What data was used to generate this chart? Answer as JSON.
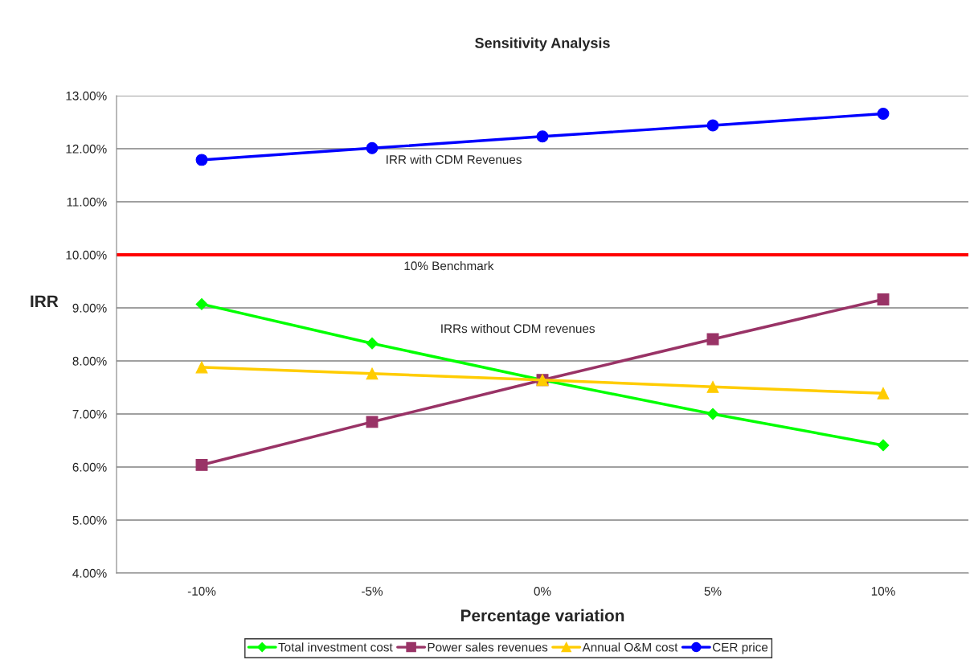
{
  "chart_data": {
    "type": "line",
    "title": "Sensitivity Analysis",
    "xlabel": "Percentage variation",
    "ylabel": "IRR",
    "categories": [
      "-10%",
      "-5%",
      "0%",
      "5%",
      "10%"
    ],
    "series": [
      {
        "name": "Total investment cost",
        "color": "#00ff00",
        "marker": "diamond",
        "values": [
          9.07,
          8.33,
          7.64,
          7.0,
          6.41
        ]
      },
      {
        "name": "Power sales revenues",
        "color": "#993366",
        "marker": "square",
        "values": [
          6.04,
          6.85,
          7.64,
          8.41,
          9.16
        ]
      },
      {
        "name": "Annual O&M cost",
        "color": "#ffcc00",
        "marker": "triangle",
        "values": [
          7.88,
          7.76,
          7.64,
          7.51,
          7.39
        ]
      },
      {
        "name": "CER price",
        "color": "#0000ff",
        "marker": "circle",
        "values": [
          11.79,
          12.01,
          12.23,
          12.44,
          12.66
        ]
      }
    ],
    "ylim": [
      4,
      13
    ],
    "yticks": [
      {
        "value": 4,
        "label": "4.00%"
      },
      {
        "value": 5,
        "label": "5.00%"
      },
      {
        "value": 6,
        "label": "6.00%"
      },
      {
        "value": 7,
        "label": "7.00%"
      },
      {
        "value": 8,
        "label": "8.00%"
      },
      {
        "value": 9,
        "label": "9.00%"
      },
      {
        "value": 10,
        "label": "10.00%"
      },
      {
        "value": 11,
        "label": "11.00%"
      },
      {
        "value": 12,
        "label": "12.00%"
      },
      {
        "value": 13,
        "label": "13.00%"
      }
    ],
    "ref_lines": [
      {
        "axis": "y",
        "value": 10,
        "label": "10% Benchmark",
        "color": "#ff0000"
      }
    ],
    "annotations": [
      {
        "text": "IRR with CDM Revenues",
        "x": "-5%",
        "y": 12.01
      },
      "IRRs without CDM revenues"
    ],
    "grid": "y",
    "legend": "bottom",
    "line_style": "solid"
  }
}
